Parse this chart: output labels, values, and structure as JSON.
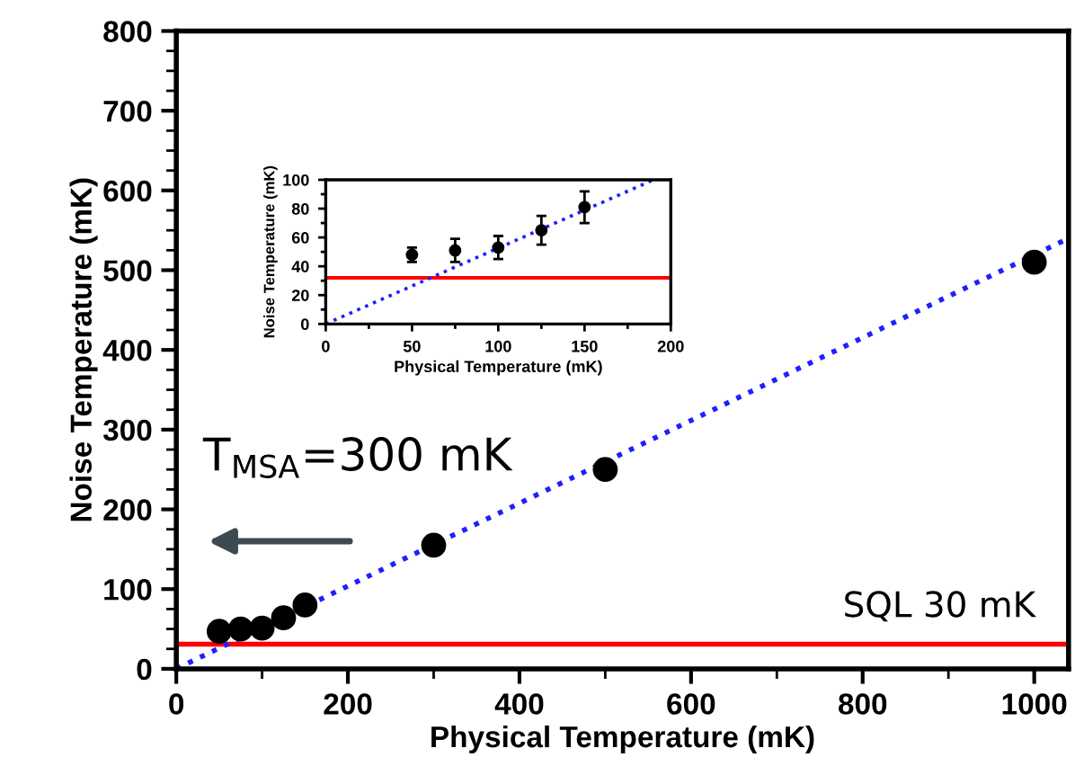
{
  "chart_data": [
    {
      "type": "scatter",
      "xlabel": "Physical Temperature (mK)",
      "ylabel": "Noise Temperature (mK)",
      "x": [
        50,
        75,
        100,
        125,
        150,
        300,
        500,
        1000
      ],
      "series": [
        {
          "color": "#000000",
          "values": [
            47,
            50,
            51,
            64,
            80,
            155,
            250,
            510
          ]
        },
        {
          "type": "line",
          "color": "#1f1fff",
          "line_style": "dotted",
          "marker": "none",
          "x": [
            0,
            1040
          ],
          "values": [
            0,
            540
          ]
        }
      ],
      "marker": "circle",
      "xlim": [
        0,
        1040
      ],
      "ylim": [
        0,
        800
      ],
      "xticks": [
        0,
        200,
        400,
        600,
        800,
        1000
      ],
      "yticks": [
        0,
        100,
        200,
        300,
        400,
        500,
        600,
        700,
        800
      ],
      "ref_lines": [
        {
          "axis": "y",
          "value": 31,
          "label": "SQL 30 mK",
          "color": "#ff0000"
        }
      ],
      "annotations": [
        "T$_{MSA}$=300 mK"
      ],
      "grid": false,
      "legend": false
    },
    {
      "type": "scatter",
      "xlabel": "Physical Temperature (mK)",
      "ylabel": "Noise Temperature (mK)",
      "x": [
        50,
        75,
        100,
        125,
        150
      ],
      "series": [
        {
          "color": "#000000",
          "values": [
            48,
            51,
            53,
            65,
            81
          ],
          "errors": [
            5,
            8,
            8,
            10,
            11
          ]
        },
        {
          "type": "line",
          "color": "#1f1fff",
          "line_style": "dotted",
          "marker": "none",
          "x": [
            0,
            190
          ],
          "values": [
            0,
            100
          ]
        }
      ],
      "marker": "circle",
      "xlim": [
        0,
        200
      ],
      "ylim": [
        0,
        100
      ],
      "xticks": [
        0,
        50,
        100,
        150,
        200
      ],
      "yticks": [
        0,
        20,
        40,
        60,
        80,
        100
      ],
      "ref_lines": [
        {
          "axis": "y",
          "value": 32,
          "color": "#ff0000"
        }
      ],
      "grid": false,
      "legend": false
    }
  ]
}
